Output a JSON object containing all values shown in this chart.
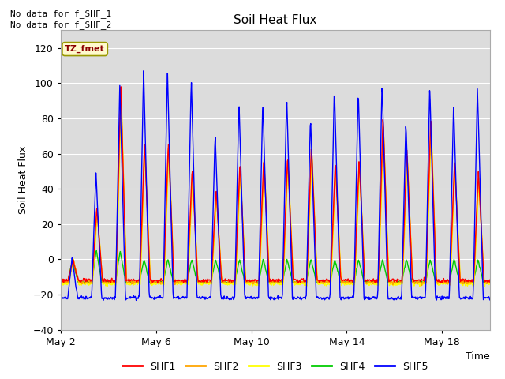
{
  "title": "Soil Heat Flux",
  "xlabel": "Time",
  "ylabel": "Soil Heat Flux",
  "ylim": [
    -40,
    130
  ],
  "yticks": [
    -40,
    -20,
    0,
    20,
    40,
    60,
    80,
    100,
    120
  ],
  "background_color": "#dcdcdc",
  "fig_background": "#ffffff",
  "text_top_left": [
    "No data for f_SHF_1",
    "No data for f_SHF_2"
  ],
  "legend_label": "TZ_fmet",
  "legend_entries": [
    "SHF1",
    "SHF2",
    "SHF3",
    "SHF4",
    "SHF5"
  ],
  "legend_colors": [
    "#ff0000",
    "#ffa500",
    "#ffff00",
    "#00cc00",
    "#0000ff"
  ],
  "line_colors": [
    "#ff0000",
    "#ffa500",
    "#ffff00",
    "#00cc00",
    "#0000ff"
  ],
  "x_tick_labels": [
    "May 2",
    "May 6",
    "May 10",
    "May 14",
    "May 18"
  ],
  "x_tick_positions": [
    1,
    5,
    9,
    13,
    17
  ],
  "num_days": 19,
  "start_day": 1
}
